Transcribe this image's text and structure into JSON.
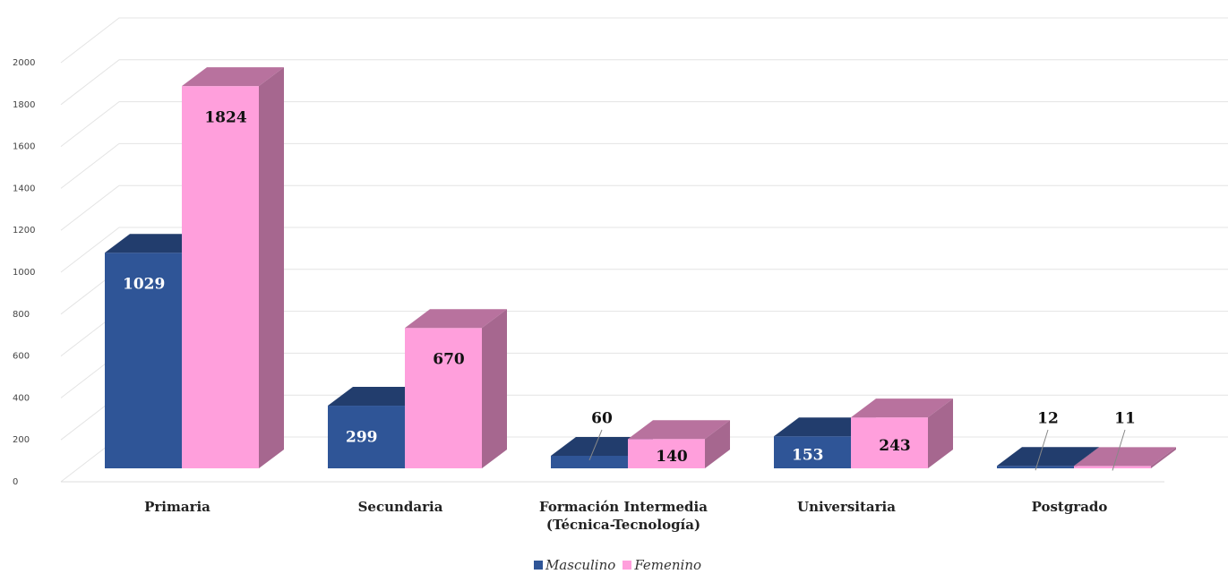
{
  "chart_data": {
    "type": "bar3d",
    "categories": [
      "Primaria",
      "Secundaria",
      "Formación Intermedia\n(Técnica-Tecnología)",
      "Universitaria",
      "Postgrado"
    ],
    "series": [
      {
        "name": "Masculino",
        "color": "#2f5597",
        "values": [
          1029,
          299,
          60,
          153,
          12
        ]
      },
      {
        "name": "Femenino",
        "color": "#ff9fdc",
        "values": [
          1824,
          670,
          140,
          243,
          11
        ]
      }
    ],
    "ylim": [
      0,
      2000
    ],
    "yticks": [
      0,
      200,
      400,
      600,
      800,
      1000,
      1200,
      1400,
      1600,
      1800,
      2000
    ],
    "grid": true,
    "legend": "bottom"
  }
}
